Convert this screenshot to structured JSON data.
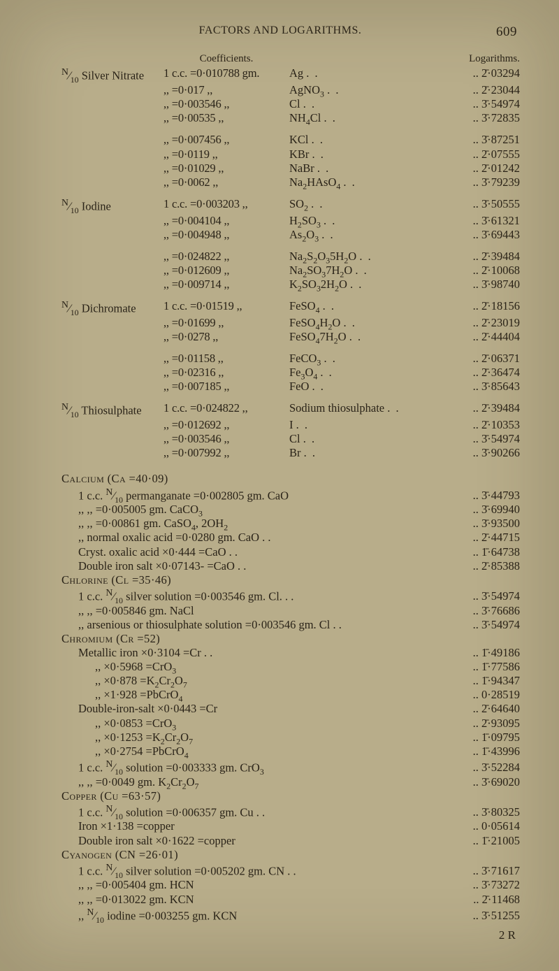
{
  "page": {
    "running_title": "FACTORS AND LOGARITHMS.",
    "number": "609",
    "coeff_header": "Coefficients.",
    "log_header": "Logarithms.",
    "sig_line": "2 R"
  },
  "substances": [
    {
      "label": "N/10 Silver Nitrate",
      "groups": [
        [
          {
            "prefix": "1 c.c.",
            "coeff": "=0·010788 gm.",
            "cmp": "Ag",
            "log": "2̄·03294"
          },
          {
            "prefix": ",,",
            "coeff": "=0·017     ,,",
            "cmp": "AgNO3",
            "log": "2̄·23044"
          },
          {
            "prefix": ",,",
            "coeff": "=0·003546 ,,",
            "cmp": "Cl",
            "log": "3̄·54974"
          },
          {
            "prefix": ",,",
            "coeff": "=0·00535  ,,",
            "cmp": "NH4Cl",
            "log": "3̄·72835"
          }
        ],
        [
          {
            "prefix": ",,",
            "coeff": "=0·007456 ,,",
            "cmp": "KCl",
            "log": "3̄·87251"
          },
          {
            "prefix": ",,",
            "coeff": "=0·0119   ,,",
            "cmp": "KBr",
            "log": "2̄·07555"
          },
          {
            "prefix": ",,",
            "coeff": "=0·01029  ,,",
            "cmp": "NaBr",
            "log": "2̄·01242"
          },
          {
            "prefix": ",,",
            "coeff": "=0·0062   ,,",
            "cmp": "Na2HAsO4",
            "log": "3̄·79239"
          }
        ]
      ]
    },
    {
      "label": "N/10 Iodine",
      "groups": [
        [
          {
            "prefix": "1 c.c.",
            "coeff": "=0·003203 ,,",
            "cmp": "SO2",
            "log": "3̄·50555"
          },
          {
            "prefix": ",,",
            "coeff": "=0·004104 ,,",
            "cmp": "H2SO3",
            "log": "3̄·61321"
          },
          {
            "prefix": ",,",
            "coeff": "=0·004948 ,,",
            "cmp": "As2O3",
            "log": "3̄·69443"
          }
        ],
        [
          {
            "prefix": ",,",
            "coeff": "=0·024822 ,,",
            "cmp": "Na2S2O35H2O",
            "log": "2̄·39484"
          },
          {
            "prefix": ",,",
            "coeff": "=0·012609 ,,",
            "cmp": "Na2SO37H2O",
            "log": "2̄·10068"
          },
          {
            "prefix": ",,",
            "coeff": "=0·009714 ,,",
            "cmp": "K2SO32H2O",
            "log": "3̄·98740"
          }
        ]
      ]
    },
    {
      "label": "N/10 Dichromate",
      "groups": [
        [
          {
            "prefix": "1 c.c.",
            "coeff": "=0·01519  ,,",
            "cmp": "FeSO4",
            "log": "2̄·18156"
          },
          {
            "prefix": ",,",
            "coeff": "=0·01699  ,,",
            "cmp": "FeSO4H2O",
            "log": "2̄·23019"
          },
          {
            "prefix": ",,",
            "coeff": "=0·0278   ,,",
            "cmp": "FeSO47H2O",
            "log": "2̄·44404"
          }
        ],
        [
          {
            "prefix": ",,",
            "coeff": "=0·01158  ,,",
            "cmp": "FeCO3",
            "log": "2̄·06371"
          },
          {
            "prefix": ",,",
            "coeff": "=0·02316  ,,",
            "cmp": "Fe3O4",
            "log": "2̄·36474"
          },
          {
            "prefix": ",,",
            "coeff": "=0·007185 ,,",
            "cmp": "FeO",
            "log": "3̄·85643"
          }
        ]
      ]
    },
    {
      "label": "N/10 Thiosulphate",
      "groups": [
        [
          {
            "prefix": "1 c.c.",
            "coeff": "=0·024822 ,,",
            "cmp": "Sodium thiosulphate",
            "log": "2̄·39484"
          },
          {
            "prefix": ",,",
            "coeff": "=0·012692 ,,",
            "cmp": "I",
            "log": "2̄·10353"
          },
          {
            "prefix": ",,",
            "coeff": "=0·003546 ,,",
            "cmp": "Cl",
            "log": "3̄·54974"
          },
          {
            "prefix": ",,",
            "coeff": "=0·007992 ,,",
            "cmp": "Br",
            "log": "3̄·90266"
          }
        ]
      ]
    }
  ],
  "free_lines": [
    {
      "cls": "smallcaps",
      "text": "Calcium (Ca =40·09)"
    },
    {
      "cls": "indent1",
      "text": "1 c.c. N/10 permanganate  =0·002805 gm. CaO",
      "log": "3̄·44793"
    },
    {
      "cls": "indent1",
      "text": ",,        ,,              =0·005005 gm. CaCO3",
      "log": "3̄·69940"
    },
    {
      "cls": "indent1",
      "text": ",,        ,,              =0·00861  gm. CaSO4, 2OH2",
      "log": "3̄·93500"
    },
    {
      "cls": "indent1",
      "text": ",,   normal oxalic acid =0·0280   gm. CaO . .",
      "log": "2̄·44715"
    },
    {
      "cls": "indent1",
      "text": "Cryst. oxalic acid ×0·444   =CaO . .",
      "log": "1̄·64738"
    },
    {
      "cls": "indent1",
      "text": "Double iron salt ×0·07143- =CaO . .",
      "log": "2̄·85388"
    },
    {
      "cls": "smallcaps",
      "text": "Chlorine (Cl =35·46)"
    },
    {
      "cls": "indent1",
      "text": "1 c.c. N/10 silver solution  =0·003546 gm. Cl. . .",
      "log": "3̄·54974"
    },
    {
      "cls": "indent1",
      "text": ",,        ,,              =0·005846 gm. NaCl",
      "log": "3̄·76686"
    },
    {
      "cls": "indent1",
      "text": ",,   arsenious or thiosulphate solution =0·003546 gm. Cl . .",
      "log": "3̄·54974"
    },
    {
      "cls": "smallcaps",
      "text": "Chromium (Cr =52)"
    },
    {
      "cls": "indent1",
      "text": "Metallic iron ×0·3104 =Cr . .",
      "log": "1̄·49186"
    },
    {
      "cls": "indent2",
      "text": ",,        ×0·5968 =CrO3",
      "log": "1̄·77586"
    },
    {
      "cls": "indent2",
      "text": ",,        ×0·878  =K2Cr2O7",
      "log": "1̄·94347"
    },
    {
      "cls": "indent2",
      "text": ",,        ×1·928  =PbCrO4",
      "log": "0·28519"
    },
    {
      "cls": "",
      "text": " "
    },
    {
      "cls": "indent1",
      "text": "Double-iron-salt ×0·0443 =Cr",
      "log": "2̄·64640"
    },
    {
      "cls": "indent2",
      "text": ",,        ×0·0853 =CrO3",
      "log": "2̄·93095"
    },
    {
      "cls": "indent2",
      "text": ",,        ×0·1253 =K2Cr2O7",
      "log": "1̄·09795"
    },
    {
      "cls": "indent2",
      "text": ",,        ×0·2754 =PbCrO4",
      "log": "1̄·43996"
    },
    {
      "cls": "",
      "text": " "
    },
    {
      "cls": "indent1",
      "text": "1 c.c. N/10 solution  =0·003333 gm. CrO3",
      "log": "3̄·52284"
    },
    {
      "cls": "indent1",
      "text": ",,        ,,          =0·0049 gm. K2Cr2O7",
      "log": "3̄·69020"
    },
    {
      "cls": "smallcaps",
      "text": "Copper (Cu =63·57)"
    },
    {
      "cls": "indent1",
      "text": "1 c.c. N/10 solution  =0·006357 gm. Cu . .",
      "log": "3̄·80325"
    },
    {
      "cls": "indent1",
      "text": "Iron ×1·138 =copper",
      "log": "0·05614"
    },
    {
      "cls": "indent1",
      "text": "Double iron salt ×0·1622 =copper",
      "log": "1̄·21005"
    },
    {
      "cls": "smallcaps",
      "text": "Cyanogen (CN =26·01)"
    },
    {
      "cls": "indent1",
      "text": "1 c.c. N/10 silver solution  =0·005202 gm. CN . .",
      "log": "3̄·71617"
    },
    {
      "cls": "indent1",
      "text": ",,        ,,              =0·005404 gm. HCN",
      "log": "3̄·73272"
    },
    {
      "cls": "indent1",
      "text": ",,        ,,              =0·013022 gm. KCN",
      "log": "2̄·11468"
    },
    {
      "cls": "indent1",
      "text": ",,   N/10 iodine          =0·003255 gm. KCN",
      "log": "3̄·51255"
    }
  ],
  "chem_map": {
    "Ag": "Ag",
    "AgNO3": "AgNO<sub>3</sub>",
    "Cl": "Cl",
    "NH4Cl": "NH<sub>4</sub>Cl",
    "KCl": "KCl",
    "KBr": "KBr",
    "NaBr": "NaBr",
    "Na2HAsO4": "Na<sub>2</sub>HAsO<sub>4</sub>",
    "SO2": "SO<sub>2</sub>",
    "H2SO3": "H<sub>2</sub>SO<sub>3</sub>",
    "As2O3": "As<sub>2</sub>O<sub>3</sub>",
    "Na2S2O35H2O": "Na<sub>2</sub>S<sub>2</sub>O<sub>3</sub>5H<sub>2</sub>O",
    "Na2SO37H2O": "Na<sub>2</sub>SO<sub>3</sub>7H<sub>2</sub>O",
    "K2SO32H2O": "K<sub>2</sub>SO<sub>3</sub>2H<sub>2</sub>O",
    "FeSO4": "FeSO<sub>4</sub>",
    "FeSO4H2O": "FeSO<sub>4</sub>H<sub>2</sub>O",
    "FeSO47H2O": "FeSO<sub>4</sub>7H<sub>2</sub>O",
    "FeCO3": "FeCO<sub>3</sub>",
    "Fe3O4": "Fe<sub>3</sub>O<sub>4</sub>",
    "FeO": "FeO",
    "Sodium thiosulphate": "Sodium thiosulphate",
    "I": "I",
    "Br": "Br",
    "CaCO3": "CaCO<sub>3</sub>",
    "CaSO4, 2OH2": "CaSO<sub>4</sub>, 2OH<sub>2</sub>",
    "CrO3": "CrO<sub>3</sub>",
    "K2Cr2O7": "K<sub>2</sub>Cr<sub>2</sub>O<sub>7</sub>",
    "PbCrO4": "PbCrO<sub>4</sub>"
  }
}
